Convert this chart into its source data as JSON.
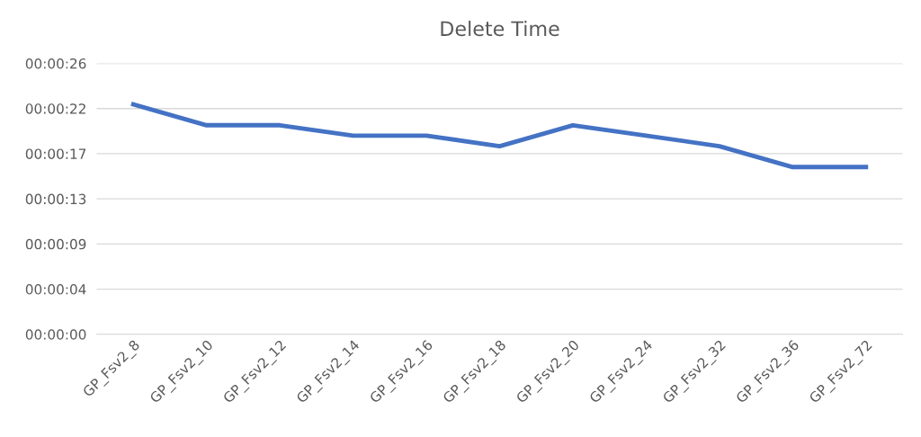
{
  "chart_data": {
    "type": "line",
    "title": "Delete Time",
    "categories": [
      "GP_Fsv2_8",
      "GP_Fsv2_10",
      "GP_Fsv2_12",
      "GP_Fsv2_14",
      "GP_Fsv2_16",
      "GP_Fsv2_18",
      "GP_Fsv2_20",
      "GP_Fsv2_24",
      "GP_Fsv2_32",
      "GP_Fsv2_36",
      "GP_Fsv2_72"
    ],
    "series": [
      {
        "color": "#4472c4",
        "values": [
          22,
          20,
          20,
          19,
          19,
          18,
          20,
          19,
          18,
          16,
          16
        ]
      }
    ],
    "ylim": [
      0,
      25.92
    ],
    "yticks": [
      {
        "value": 0,
        "label": "00:00:00"
      },
      {
        "value": 4.32,
        "label": "00:00:04"
      },
      {
        "value": 8.64,
        "label": "00:00:09"
      },
      {
        "value": 12.96,
        "label": "00:00:13"
      },
      {
        "value": 17.28,
        "label": "00:00:17"
      },
      {
        "value": 21.6,
        "label": "00:00:22"
      },
      {
        "value": 25.92,
        "label": "00:00:26"
      }
    ],
    "grid": "y",
    "marker": "none",
    "line_style": "solid"
  }
}
